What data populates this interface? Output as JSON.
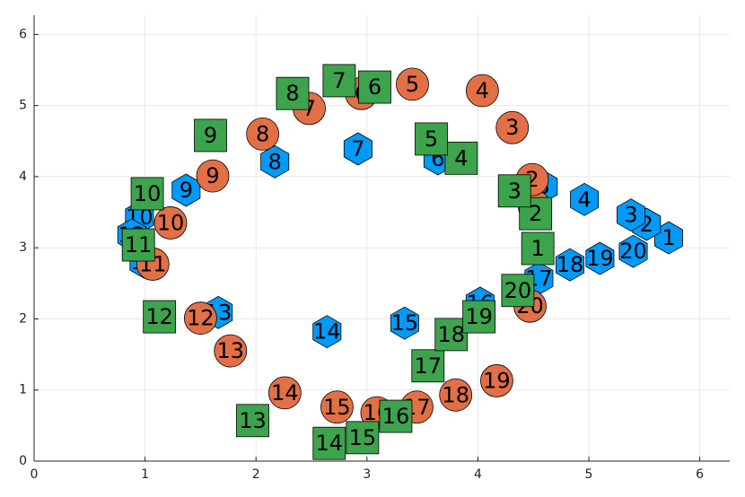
{
  "chart_data": {
    "type": "scatter",
    "labels": [
      1,
      2,
      3,
      4,
      5,
      6,
      7,
      8,
      9,
      10,
      11,
      12,
      13,
      14,
      15,
      16,
      17,
      18,
      19,
      20
    ],
    "series": [
      {
        "color": "#009af9",
        "marker": "hexagon",
        "x": [
          5.72,
          5.52,
          5.38,
          4.96,
          4.59,
          3.64,
          2.92,
          2.17,
          1.37,
          0.95,
          0.99,
          0.88,
          1.66,
          2.64,
          3.34,
          4.02,
          4.55,
          4.83,
          5.1,
          5.4
        ],
        "values": [
          3.14,
          3.33,
          3.46,
          3.68,
          3.86,
          4.25,
          4.39,
          4.21,
          3.81,
          3.43,
          2.8,
          3.18,
          2.09,
          1.82,
          1.94,
          2.22,
          2.57,
          2.76,
          2.85,
          2.95
        ]
      },
      {
        "color": "#e26f46",
        "marker": "circle",
        "x": [
          4.51,
          4.49,
          4.31,
          4.04,
          3.41,
          2.95,
          2.48,
          2.06,
          1.61,
          1.23,
          1.07,
          1.5,
          1.77,
          2.26,
          2.73,
          3.09,
          3.45,
          3.8,
          4.17,
          4.47
        ],
        "values": [
          3.58,
          3.96,
          4.69,
          5.21,
          5.3,
          5.17,
          4.96,
          4.6,
          4.01,
          3.35,
          2.77,
          2.01,
          1.55,
          0.96,
          0.76,
          0.68,
          0.76,
          0.93,
          1.13,
          2.18
        ]
      },
      {
        "color": "#3da44d",
        "marker": "square",
        "x": [
          4.54,
          4.52,
          4.33,
          3.85,
          3.58,
          3.07,
          2.75,
          2.33,
          1.59,
          1.02,
          0.94,
          1.13,
          1.97,
          2.66,
          2.96,
          3.26,
          3.55,
          3.76,
          4.01,
          4.36
        ],
        "values": [
          2.99,
          3.48,
          3.8,
          4.26,
          4.53,
          5.26,
          5.35,
          5.17,
          4.58,
          3.76,
          3.04,
          2.03,
          0.57,
          0.25,
          0.33,
          0.63,
          1.34,
          1.78,
          2.03,
          2.4
        ]
      }
    ],
    "xlim": [
      0,
      6.27
    ],
    "ylim": [
      0,
      6.27
    ],
    "xticks": [
      0,
      1,
      2,
      3,
      4,
      5,
      6
    ],
    "yticks": [
      0,
      1,
      2,
      3,
      4,
      5,
      6
    ],
    "grid": true
  }
}
